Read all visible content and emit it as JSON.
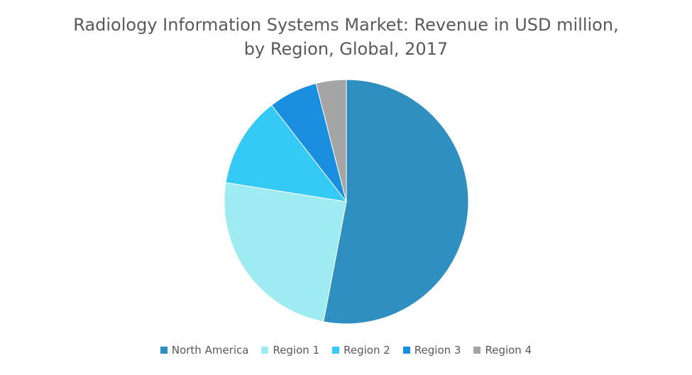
{
  "chart_data": {
    "type": "pie",
    "title_line1": "Radiology Information Systems Market: Revenue in USD million,",
    "title_line2": "by Region, Global, 2017",
    "slices": [
      {
        "label": "North America",
        "value": 53.0,
        "color": "#2E8FC0"
      },
      {
        "label": "Region 1",
        "value": 24.5,
        "color": "#9EEBF2"
      },
      {
        "label": "Region 2",
        "value": 12.0,
        "color": "#35CAF5"
      },
      {
        "label": "Region 3",
        "value": 6.5,
        "color": "#1A8FE0"
      },
      {
        "label": "Region 4",
        "value": 4.0,
        "color": "#A5A5A5"
      }
    ],
    "legend_position": "bottom"
  }
}
